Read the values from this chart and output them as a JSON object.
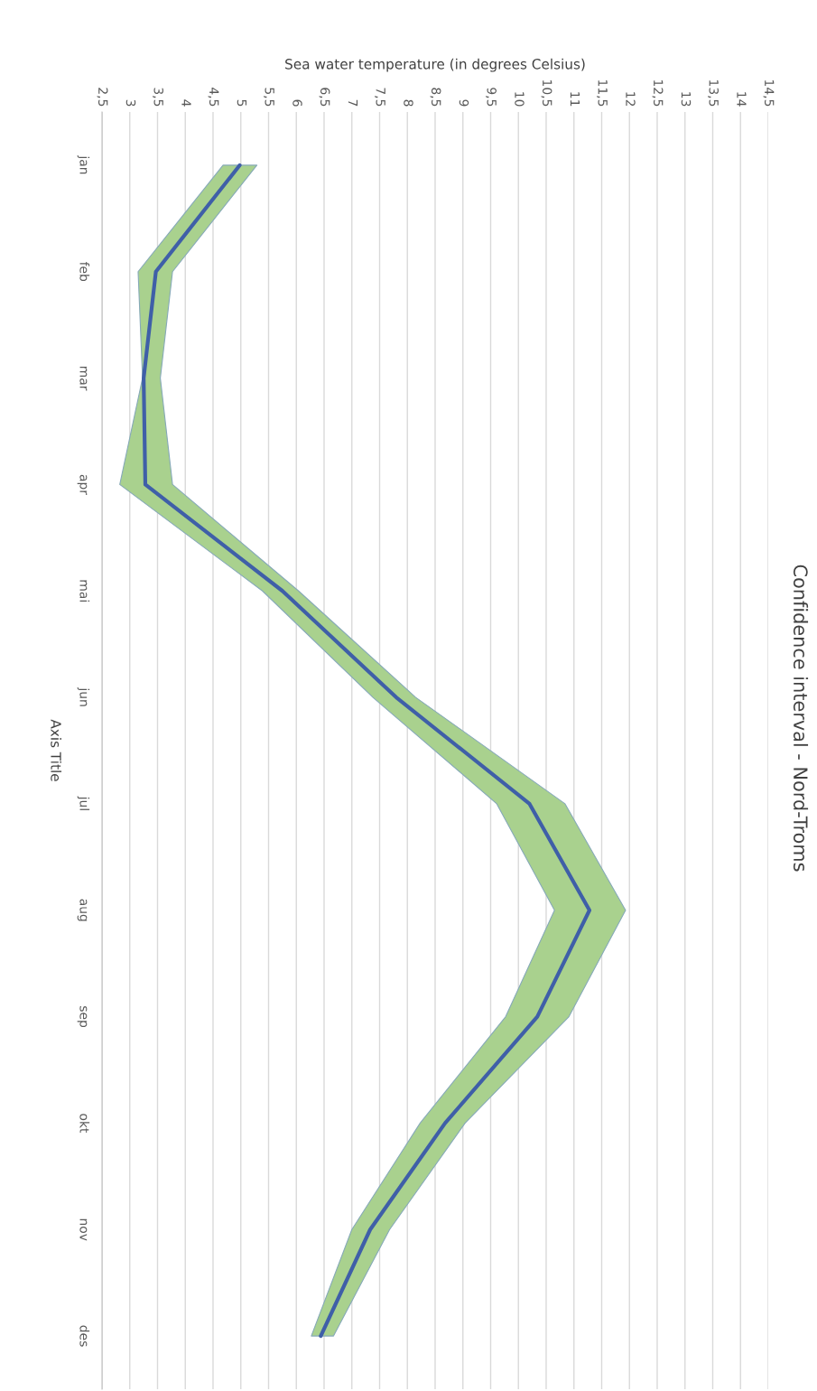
{
  "chart_data": {
    "type": "line",
    "title": "Confidence interval - Nord-Troms",
    "xlabel": "Sea water temperature (in degrees Celsius)",
    "ylabel": "Axis Title",
    "orientation": "horizontal",
    "categories": [
      "jan",
      "feb",
      "mar",
      "apr",
      "mai",
      "jun",
      "jul",
      "aug",
      "sep",
      "okt",
      "nov",
      "des"
    ],
    "series": [
      {
        "color": "#3f5fa8",
        "values": [
          4.98,
          3.47,
          3.25,
          3.28,
          5.75,
          7.8,
          10.2,
          11.28,
          10.34,
          8.68,
          7.33,
          6.44
        ],
        "lower": [
          4.68,
          3.15,
          3.23,
          2.82,
          5.39,
          7.38,
          9.61,
          10.65,
          9.77,
          8.23,
          7.0,
          6.27
        ],
        "upper": [
          5.29,
          3.77,
          3.55,
          3.77,
          6.04,
          8.15,
          10.84,
          11.93,
          10.91,
          9.04,
          7.68,
          6.67
        ]
      }
    ],
    "xlim": [
      2.5,
      14.5
    ],
    "xticks": [
      {
        "value": 2.5,
        "label": "2,5"
      },
      3,
      {
        "value": 3.5,
        "label": "3,5"
      },
      4,
      {
        "value": 4.5,
        "label": "4,5"
      },
      5,
      {
        "value": 5.5,
        "label": "5,5"
      },
      6,
      {
        "value": 6.5,
        "label": "6,5"
      },
      7,
      {
        "value": 7.5,
        "label": "7,5"
      },
      8,
      {
        "value": 8.5,
        "label": "8,5"
      },
      9,
      {
        "value": 9.5,
        "label": "9,5"
      },
      10,
      {
        "value": 10.5,
        "label": "10,5"
      },
      11,
      {
        "value": 11.5,
        "label": "11,5"
      },
      12,
      {
        "value": 12.5,
        "label": "12,5"
      },
      13,
      {
        "value": 13.5,
        "label": "13,5"
      },
      14,
      {
        "value": 14.5,
        "label": "14,5"
      }
    ],
    "grid": "x",
    "legend": false,
    "marker": "none",
    "line_style": "solid"
  }
}
